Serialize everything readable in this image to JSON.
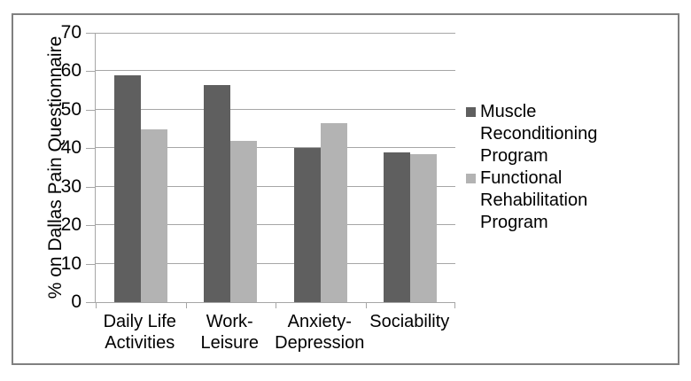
{
  "figure": {
    "background": "#FFFFFF",
    "border_color": "#808080"
  },
  "chart_data": {
    "type": "bar",
    "title": "",
    "xlabel": "",
    "ylabel": "% on Dallas Pain Questionnaire",
    "ylim": [
      0,
      70
    ],
    "yticks": [
      0,
      10,
      20,
      30,
      40,
      50,
      60,
      70
    ],
    "grid": true,
    "gridline_color": "#A6A6A6",
    "axis_color": "#A6A6A6",
    "legend_position": "right",
    "categories": [
      "Daily Life\nActivities",
      "Work-\nLeisure",
      "Anxiety-\nDepression",
      "Sociability"
    ],
    "series": [
      {
        "name": "Muscle Reconditioning Program",
        "color": "#5F5F5F",
        "values": [
          59,
          56.5,
          40,
          39
        ]
      },
      {
        "name": "Functional Rehabilitation Program",
        "color": "#B3B3B3",
        "values": [
          45,
          42,
          46.5,
          38.5
        ]
      }
    ]
  }
}
